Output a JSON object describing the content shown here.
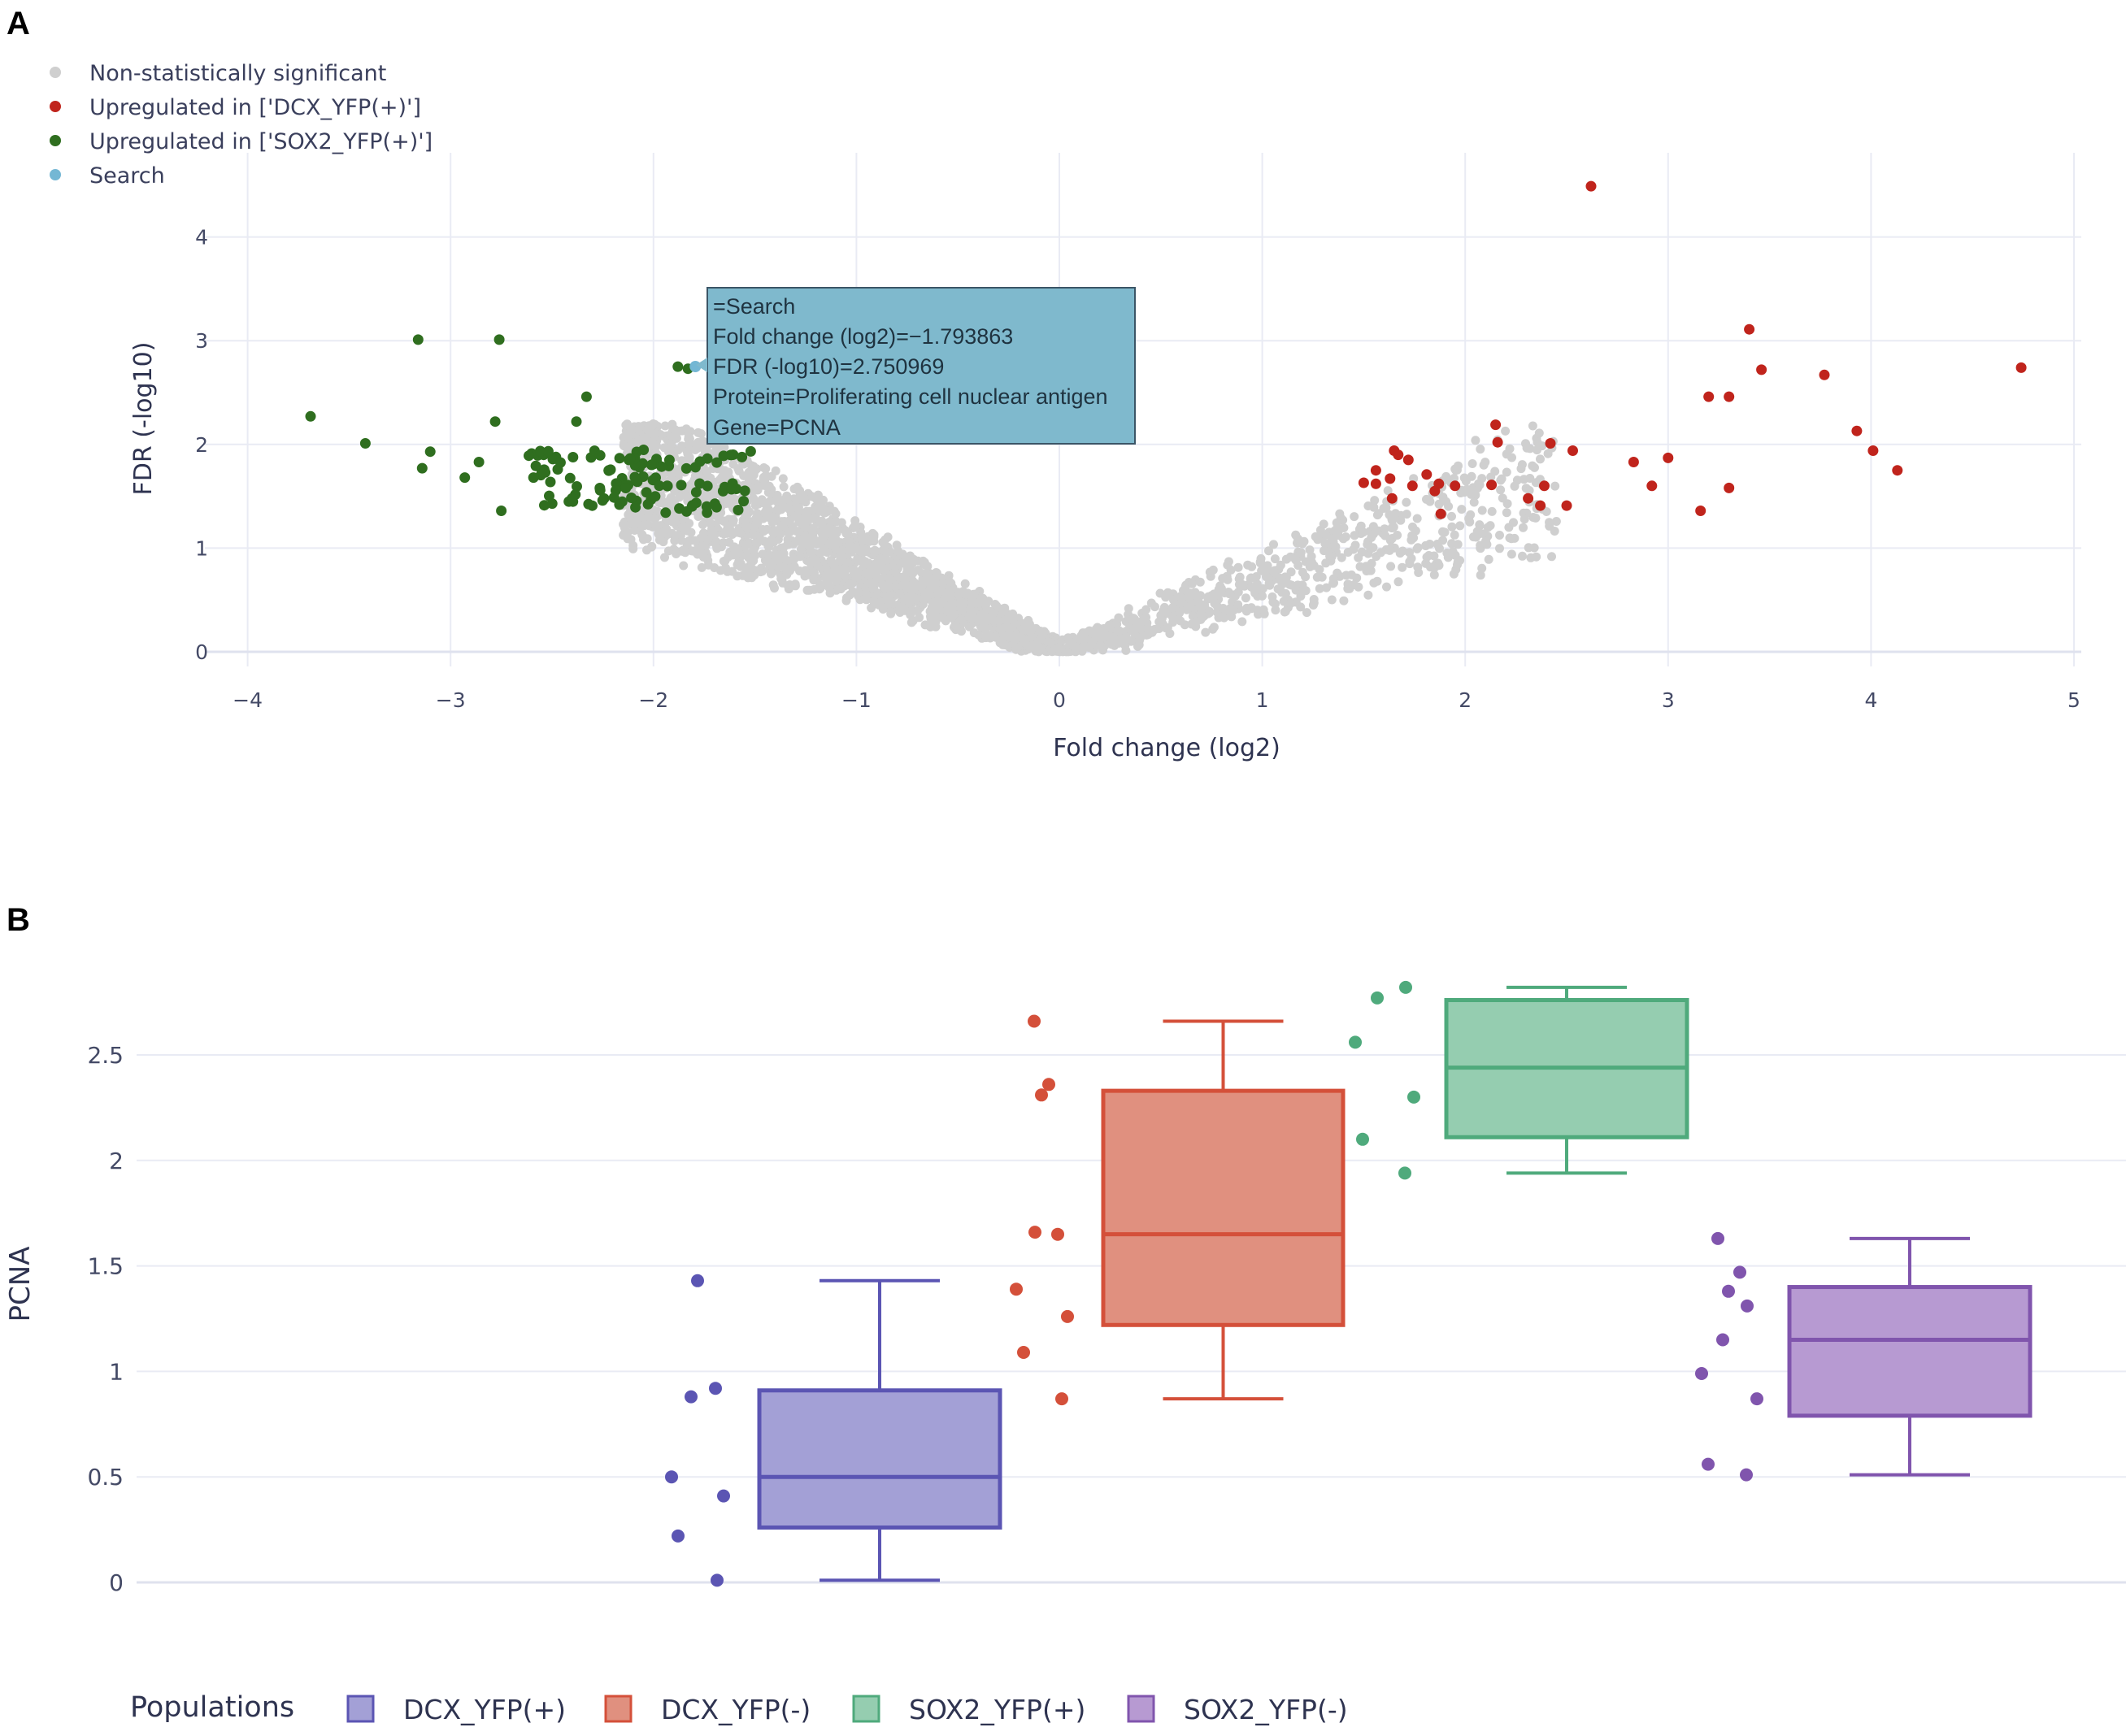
{
  "panels": {
    "a_label": "A",
    "b_label": "B"
  },
  "colors": {
    "nonsig": "#cfcfcf",
    "up_dcx": "#c0241c",
    "up_sox2": "#2f6e1f",
    "search": "#74b7d4",
    "grid": "#e9ebf4",
    "tooltip_bg": "#7fb9cd",
    "tooltip_border": "#3b5566"
  },
  "chart_data": [
    {
      "type": "scatter",
      "title": "",
      "xlabel": "Fold change (log2)",
      "ylabel": "FDR (-log10)",
      "xlim": [
        -4.2,
        5.2
      ],
      "ylim": [
        -0.15,
        4.6
      ],
      "xticks": [
        -4,
        -3,
        -2,
        -1,
        0,
        1,
        2,
        3,
        4,
        5
      ],
      "xtick_labels": [
        "−4",
        "−3",
        "−2",
        "−1",
        "0",
        "1",
        "2",
        "3",
        "4",
        "5"
      ],
      "yticks": [
        0,
        1,
        2,
        3,
        4
      ],
      "ytick_labels": [
        "0",
        "1",
        "2",
        "3",
        "4"
      ],
      "legend_position": "top-left",
      "legend": [
        {
          "key": "nonsig",
          "label": "Non-statistically significant"
        },
        {
          "key": "up_dcx",
          "label": "Upregulated in ['DCX_YFP(+)']"
        },
        {
          "key": "up_sox2",
          "label": "Upregulated in ['SOX2_YFP(+)']"
        },
        {
          "key": "search",
          "label": "Search"
        }
      ],
      "series": [
        {
          "name": "Upregulated in ['DCX_YFP(+)']",
          "key": "up_dcx",
          "points": [
            [
              2.62,
              4.49
            ],
            [
              3.4,
              3.11
            ],
            [
              3.46,
              2.72
            ],
            [
              3.77,
              2.67
            ],
            [
              4.74,
              2.74
            ],
            [
              3.2,
              2.46
            ],
            [
              3.3,
              2.46
            ],
            [
              3.93,
              2.13
            ],
            [
              4.01,
              1.94
            ],
            [
              4.13,
              1.75
            ],
            [
              2.15,
              2.19
            ],
            [
              2.16,
              2.02
            ],
            [
              2.42,
              2.01
            ],
            [
              2.53,
              1.94
            ],
            [
              2.83,
              1.83
            ],
            [
              3.0,
              1.87
            ],
            [
              2.92,
              1.6
            ],
            [
              3.16,
              1.36
            ],
            [
              3.3,
              1.58
            ],
            [
              1.65,
              1.94
            ],
            [
              1.67,
              1.9
            ],
            [
              1.72,
              1.85
            ],
            [
              1.56,
              1.75
            ],
            [
              1.5,
              1.63
            ],
            [
              1.63,
              1.67
            ],
            [
              1.74,
              1.6
            ],
            [
              1.64,
              1.48
            ],
            [
              1.81,
              1.71
            ],
            [
              1.85,
              1.55
            ],
            [
              1.87,
              1.62
            ],
            [
              1.95,
              1.6
            ],
            [
              1.88,
              1.33
            ],
            [
              2.13,
              1.61
            ],
            [
              2.31,
              1.48
            ],
            [
              2.39,
              1.6
            ],
            [
              2.37,
              1.41
            ],
            [
              2.5,
              1.41
            ],
            [
              1.56,
              1.62
            ]
          ]
        },
        {
          "name": "Upregulated in ['SOX2_YFP(+)']",
          "key": "up_sox2",
          "points": [
            [
              -3.69,
              2.27
            ],
            [
              -3.42,
              2.01
            ],
            [
              -3.16,
              3.01
            ],
            [
              -2.76,
              3.01
            ],
            [
              -3.1,
              1.93
            ],
            [
              -3.14,
              1.77
            ],
            [
              -2.78,
              2.22
            ],
            [
              -2.38,
              2.22
            ],
            [
              -2.33,
              2.46
            ],
            [
              -1.88,
              2.75
            ],
            [
              -1.83,
              2.73
            ],
            [
              -2.86,
              1.83
            ],
            [
              -2.93,
              1.68
            ],
            [
              -2.75,
              1.36
            ]
          ]
        },
        {
          "name": "Search",
          "key": "search",
          "points": [
            [
              -1.793863,
              2.750969
            ]
          ]
        }
      ],
      "tooltip": {
        "lines": [
          "=Search",
          "Fold change (log2)=−1.793863",
          "FDR (-log10)=2.750969",
          "Protein=Proliferating cell nuclear antigen",
          "Gene=PCNA"
        ]
      }
    },
    {
      "type": "box",
      "title": "",
      "xlabel": "",
      "ylabel": "PCNA",
      "ylim": [
        -0.08,
        3.0
      ],
      "yticks": [
        0,
        0.5,
        1,
        1.5,
        2,
        2.5
      ],
      "ytick_labels": [
        "0",
        "0.5",
        "1",
        "1.5",
        "2",
        "2.5"
      ],
      "legend_title": "Populations",
      "legend_position": "bottom-left",
      "series": [
        {
          "name": "DCX_YFP(+)",
          "color": "#5b55b3",
          "fill": "#a3a0d6",
          "min": 0.01,
          "q1": 0.26,
          "median": 0.5,
          "q3": 0.91,
          "max": 1.43,
          "points": [
            1.43,
            0.92,
            0.88,
            0.5,
            0.41,
            0.22,
            0.01
          ]
        },
        {
          "name": "DCX_YFP(-)",
          "color": "#d4503a",
          "fill": "#e0907f",
          "min": 0.87,
          "q1": 1.22,
          "median": 1.65,
          "q3": 2.33,
          "max": 2.66,
          "points": [
            2.66,
            2.36,
            2.31,
            1.66,
            1.65,
            1.39,
            1.26,
            1.09,
            0.87
          ]
        },
        {
          "name": "SOX2_YFP(+)",
          "color": "#4faa7c",
          "fill": "#95cdb0",
          "min": 1.94,
          "q1": 2.11,
          "median": 2.44,
          "q3": 2.76,
          "max": 2.82,
          "points": [
            2.82,
            2.77,
            2.56,
            2.3,
            2.1,
            1.94
          ]
        },
        {
          "name": "SOX2_YFP(-)",
          "color": "#8055ad",
          "fill": "#b79ad2",
          "min": 0.51,
          "q1": 0.79,
          "median": 1.15,
          "q3": 1.4,
          "max": 1.63,
          "points": [
            1.63,
            1.47,
            1.38,
            1.31,
            1.15,
            0.99,
            0.87,
            0.56,
            0.51
          ]
        }
      ]
    }
  ]
}
